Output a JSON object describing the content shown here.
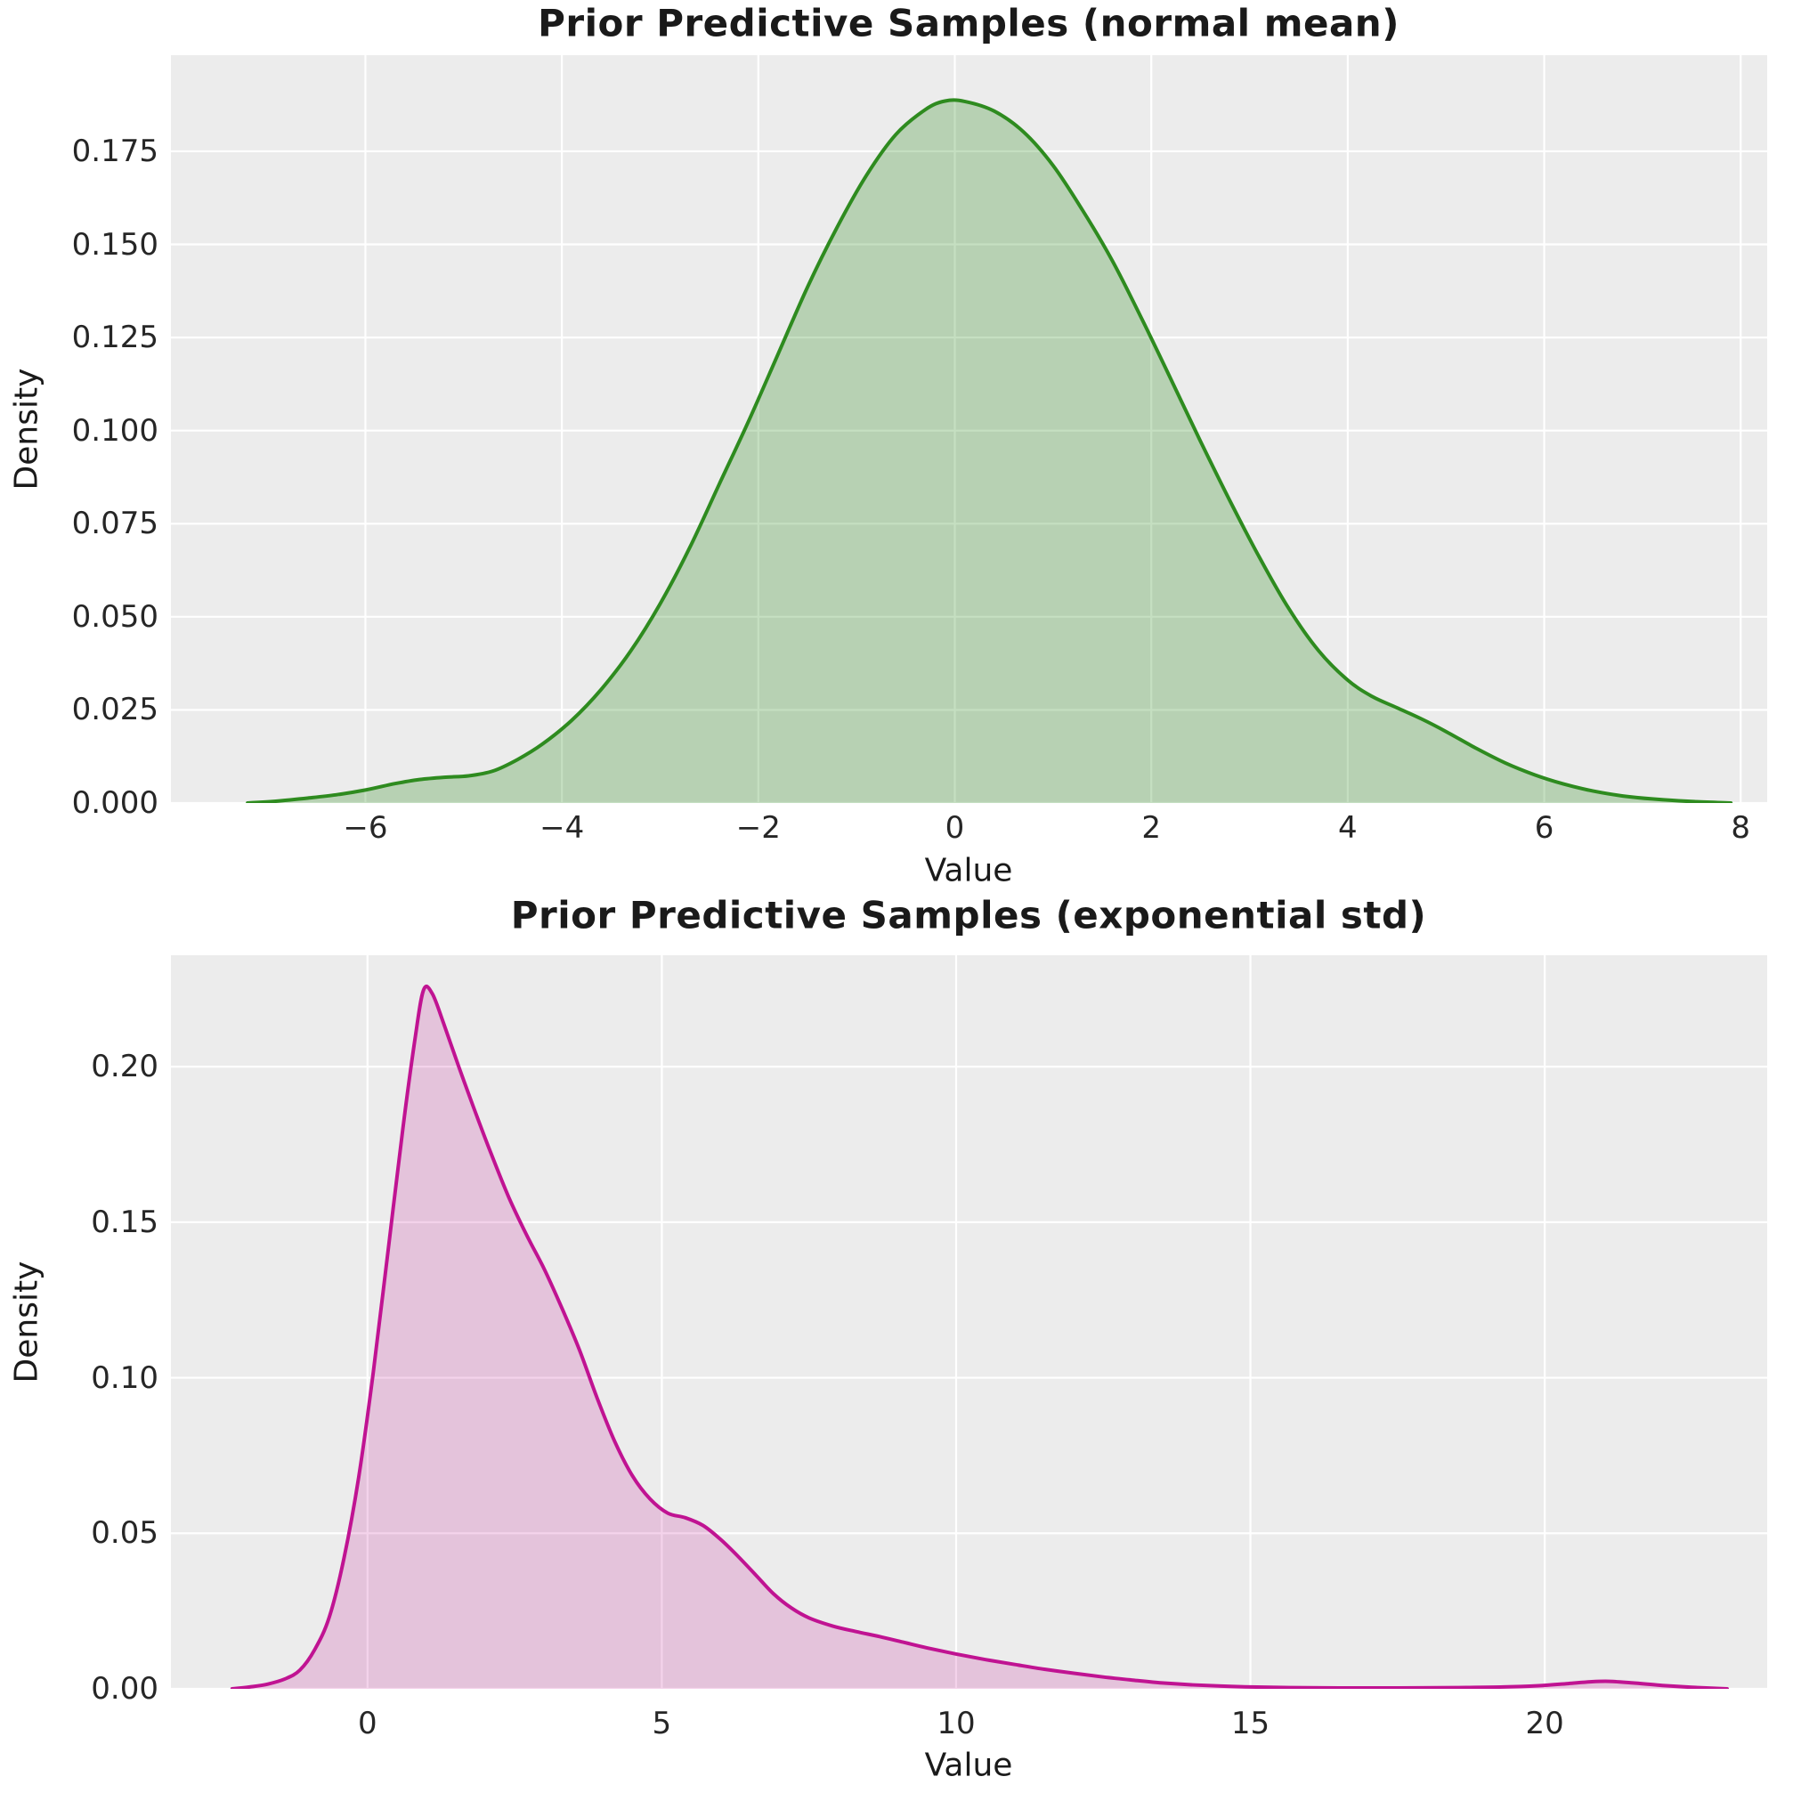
{
  "figure": {
    "background": "#ffffff",
    "axes_background": "#ececec",
    "grid_color": "#ffffff",
    "tick_color": "#262626",
    "title_color": "#1a1a1a"
  },
  "chart_data": [
    {
      "type": "area",
      "title": "Prior Predictive Samples (normal mean)",
      "xlabel": "Value",
      "ylabel": "Density",
      "line_color": "#2e8b1f",
      "fill_color": "rgba(46,139,34,0.28)",
      "grid": true,
      "legend": null,
      "xlim": [
        -7.98,
        8.27
      ],
      "ylim": [
        0,
        0.2008
      ],
      "xticks": {
        "values": [
          -6,
          -4,
          -2,
          0,
          2,
          4,
          6,
          8
        ],
        "labels": [
          "−6",
          "−4",
          "−2",
          "0",
          "2",
          "4",
          "6",
          "8"
        ]
      },
      "yticks": {
        "values": [
          0,
          0.025,
          0.05,
          0.075,
          0.1,
          0.125,
          0.15,
          0.175
        ],
        "labels": [
          "0.000",
          "0.025",
          "0.050",
          "0.075",
          "0.100",
          "0.125",
          "0.150",
          "0.175"
        ]
      },
      "peak": {
        "x": -0.1,
        "density": 0.189
      },
      "points": [
        [
          -7.2,
          0
        ],
        [
          -6.9,
          0.0005
        ],
        [
          -6.6,
          0.0013
        ],
        [
          -6.3,
          0.0022
        ],
        [
          -6.0,
          0.0035
        ],
        [
          -5.7,
          0.0052
        ],
        [
          -5.45,
          0.0063
        ],
        [
          -5.2,
          0.0069
        ],
        [
          -4.95,
          0.0073
        ],
        [
          -4.7,
          0.0086
        ],
        [
          -4.45,
          0.0117
        ],
        [
          -4.2,
          0.0158
        ],
        [
          -3.9,
          0.0222
        ],
        [
          -3.6,
          0.0305
        ],
        [
          -3.3,
          0.0408
        ],
        [
          -3.0,
          0.0535
        ],
        [
          -2.7,
          0.0685
        ],
        [
          -2.4,
          0.0855
        ],
        [
          -2.1,
          0.1025
        ],
        [
          -1.8,
          0.1205
        ],
        [
          -1.5,
          0.1385
        ],
        [
          -1.2,
          0.1545
        ],
        [
          -0.9,
          0.1685
        ],
        [
          -0.6,
          0.1795
        ],
        [
          -0.3,
          0.1862
        ],
        [
          -0.1,
          0.1885
        ],
        [
          0.1,
          0.1884
        ],
        [
          0.4,
          0.1858
        ],
        [
          0.7,
          0.1802
        ],
        [
          1.0,
          0.1712
        ],
        [
          1.3,
          0.1592
        ],
        [
          1.6,
          0.1458
        ],
        [
          1.9,
          0.1302
        ],
        [
          2.2,
          0.1138
        ],
        [
          2.5,
          0.0972
        ],
        [
          2.8,
          0.0812
        ],
        [
          3.1,
          0.066
        ],
        [
          3.4,
          0.0522
        ],
        [
          3.7,
          0.041
        ],
        [
          4.0,
          0.033
        ],
        [
          4.25,
          0.0286
        ],
        [
          4.5,
          0.0256
        ],
        [
          4.75,
          0.0226
        ],
        [
          5.0,
          0.0192
        ],
        [
          5.3,
          0.0148
        ],
        [
          5.6,
          0.0108
        ],
        [
          5.9,
          0.0076
        ],
        [
          6.2,
          0.0051
        ],
        [
          6.5,
          0.0032
        ],
        [
          6.8,
          0.0019
        ],
        [
          7.1,
          0.0011
        ],
        [
          7.5,
          0.0004
        ],
        [
          7.9,
          0
        ]
      ]
    },
    {
      "type": "area",
      "title": "Prior Predictive Samples (exponential std)",
      "xlabel": "Value",
      "ylabel": "Density",
      "line_color": "#c01392",
      "fill_color": "rgba(199,21,149,0.19)",
      "grid": true,
      "legend": null,
      "xlim": [
        -3.34,
        23.78
      ],
      "ylim": [
        0,
        0.2358
      ],
      "xticks": {
        "values": [
          0,
          5,
          10,
          15,
          20
        ],
        "labels": [
          "0",
          "5",
          "10",
          "15",
          "20"
        ]
      },
      "yticks": {
        "values": [
          0,
          0.05,
          0.1,
          0.15,
          0.2
        ],
        "labels": [
          "0.00",
          "0.05",
          "0.10",
          "0.15",
          "0.20"
        ]
      },
      "peak": {
        "x": 0.95,
        "density": 0.2245
      },
      "points": [
        [
          -2.3,
          0
        ],
        [
          -2.0,
          0.0006
        ],
        [
          -1.7,
          0.0015
        ],
        [
          -1.4,
          0.0032
        ],
        [
          -1.15,
          0.006
        ],
        [
          -0.9,
          0.0125
        ],
        [
          -0.65,
          0.023
        ],
        [
          -0.4,
          0.042
        ],
        [
          -0.15,
          0.068
        ],
        [
          0.1,
          0.102
        ],
        [
          0.35,
          0.141
        ],
        [
          0.6,
          0.18
        ],
        [
          0.8,
          0.208
        ],
        [
          0.95,
          0.2245
        ],
        [
          1.1,
          0.2235
        ],
        [
          1.3,
          0.2135
        ],
        [
          1.55,
          0.2
        ],
        [
          1.8,
          0.187
        ],
        [
          2.1,
          0.172
        ],
        [
          2.4,
          0.158
        ],
        [
          2.7,
          0.146
        ],
        [
          3.0,
          0.135
        ],
        [
          3.3,
          0.1225
        ],
        [
          3.6,
          0.109
        ],
        [
          3.9,
          0.0935
        ],
        [
          4.2,
          0.0795
        ],
        [
          4.5,
          0.0685
        ],
        [
          4.8,
          0.061
        ],
        [
          5.1,
          0.0565
        ],
        [
          5.4,
          0.055
        ],
        [
          5.7,
          0.0525
        ],
        [
          6.0,
          0.048
        ],
        [
          6.3,
          0.0425
        ],
        [
          6.6,
          0.0365
        ],
        [
          6.9,
          0.0305
        ],
        [
          7.2,
          0.026
        ],
        [
          7.5,
          0.0228
        ],
        [
          7.9,
          0.0202
        ],
        [
          8.3,
          0.0184
        ],
        [
          8.7,
          0.0168
        ],
        [
          9.1,
          0.015
        ],
        [
          9.5,
          0.0132
        ],
        [
          10.0,
          0.0112
        ],
        [
          10.5,
          0.0094
        ],
        [
          11.0,
          0.0078
        ],
        [
          11.5,
          0.0063
        ],
        [
          12.0,
          0.005
        ],
        [
          12.5,
          0.0038
        ],
        [
          13.0,
          0.0028
        ],
        [
          13.5,
          0.0019
        ],
        [
          14.0,
          0.0013
        ],
        [
          14.5,
          0.0009
        ],
        [
          15.0,
          0.0006
        ],
        [
          15.7,
          0.0004
        ],
        [
          16.5,
          0.0003
        ],
        [
          17.5,
          0.0003
        ],
        [
          18.5,
          0.0004
        ],
        [
          19.3,
          0.0006
        ],
        [
          19.9,
          0.001
        ],
        [
          20.4,
          0.0017
        ],
        [
          20.8,
          0.0023
        ],
        [
          21.1,
          0.0024
        ],
        [
          21.5,
          0.0019
        ],
        [
          22.0,
          0.0011
        ],
        [
          22.5,
          0.0005
        ],
        [
          23.1,
          0
        ]
      ]
    }
  ]
}
